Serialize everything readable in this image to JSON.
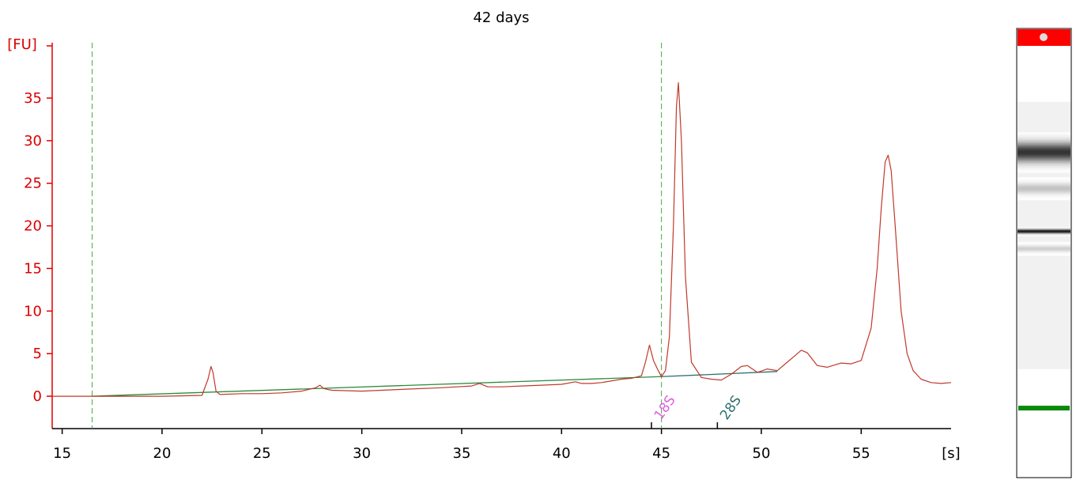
{
  "chart_data": {
    "type": "line",
    "title": "42 days",
    "ylabel": "[FU]",
    "xlabel": "[s]",
    "xlim": [
      14.5,
      59.5
    ],
    "ylim": [
      -3.8,
      41.5
    ],
    "xticks": [
      15,
      20,
      25,
      30,
      35,
      40,
      45,
      50,
      55
    ],
    "yticks": [
      0,
      5,
      10,
      15,
      20,
      25,
      30,
      35
    ],
    "grid": false,
    "colors": {
      "trace": "#c0392b",
      "y_axis": "#dd0000",
      "x_axis": "#000000",
      "baseline_18s": "#2e8b3e",
      "baseline_28s": "#2f6f6f",
      "marker_line": "#44aa44",
      "label_18s": "#e060e0",
      "label_28s": "#2f6f6f",
      "gel_band": "#111111",
      "gel_marker": "#0a8a0a",
      "gel_header": "#ff0000"
    },
    "markers_x": [
      16.5,
      45.0
    ],
    "peak_labels": [
      {
        "text": "18S",
        "x": 44.5
      },
      {
        "text": "28S",
        "x": 47.8
      }
    ],
    "series": [
      {
        "x": [
          14.5,
          16.5,
          18,
          20,
          22,
          22.3,
          22.45,
          22.55,
          22.7,
          22.9,
          24,
          25,
          26,
          27,
          27.7,
          27.9,
          28.1,
          28.5,
          30,
          32,
          34,
          35.5,
          35.9,
          36.3,
          37,
          38,
          39,
          40,
          40.7,
          41,
          41.5,
          42,
          43,
          43.5,
          44,
          44.2,
          44.4,
          44.6,
          44.8,
          45.0,
          45.2,
          45.4,
          45.6,
          45.75,
          45.85,
          46.0,
          46.2,
          46.5,
          47,
          47.5,
          48,
          48.5,
          49,
          49.3,
          49.8,
          50.3,
          50.8,
          51.3,
          51.7,
          52.0,
          52.3,
          52.8,
          53.3,
          54,
          54.5,
          55,
          55.5,
          55.8,
          56.0,
          56.2,
          56.35,
          56.5,
          56.7,
          57.0,
          57.3,
          57.6,
          58,
          58.5,
          59,
          59.5
        ],
        "y": [
          0,
          0,
          0,
          0,
          0.1,
          2.0,
          3.5,
          2.8,
          0.6,
          0.2,
          0.3,
          0.3,
          0.4,
          0.6,
          1.0,
          1.3,
          0.9,
          0.7,
          0.6,
          0.8,
          1.0,
          1.2,
          1.5,
          1.1,
          1.1,
          1.2,
          1.3,
          1.4,
          1.7,
          1.5,
          1.5,
          1.6,
          2.0,
          2.1,
          2.4,
          4.0,
          6.0,
          4.2,
          3.2,
          2.3,
          3.0,
          7.0,
          20.0,
          34.0,
          36.8,
          30.0,
          14.0,
          4.0,
          2.2,
          2.0,
          1.9,
          2.6,
          3.5,
          3.6,
          2.8,
          3.2,
          3.0,
          4.0,
          4.8,
          5.4,
          5.1,
          3.6,
          3.4,
          3.9,
          3.8,
          4.2,
          8.0,
          15.0,
          22.0,
          27.5,
          28.3,
          26.5,
          20.0,
          10.0,
          5.0,
          3.0,
          2.0,
          1.6,
          1.5,
          1.6
        ]
      }
    ],
    "baselines": [
      {
        "name": "18S",
        "x": [
          16.5,
          45.0
        ],
        "y": [
          0,
          2.3
        ]
      },
      {
        "name": "28S",
        "x": [
          45.0,
          50.8
        ],
        "y": [
          2.3,
          2.9
        ]
      }
    ],
    "gel_lane": {
      "bands": [
        {
          "position": 0.245,
          "intensity": 0.85,
          "spread": 0.09
        },
        {
          "position": 0.33,
          "intensity": 0.25,
          "spread": 0.05
        },
        {
          "position": 0.43,
          "intensity": 0.95,
          "spread": 0.02
        },
        {
          "position": 0.47,
          "intensity": 0.2,
          "spread": 0.03
        }
      ],
      "marker_position": 0.835
    }
  }
}
